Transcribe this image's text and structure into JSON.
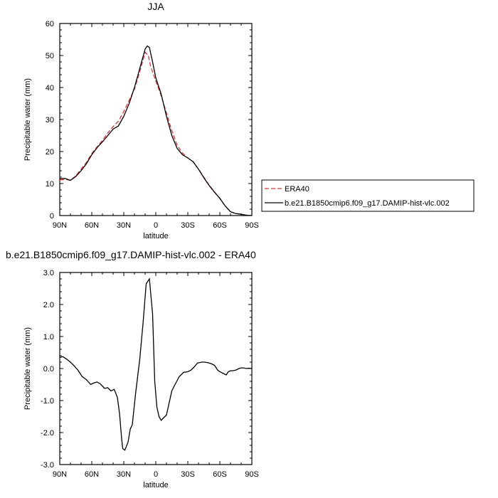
{
  "chart_data": [
    {
      "type": "line",
      "title": "JJA",
      "xlabel": "latitude",
      "ylabel": "Precipitable water (mm)",
      "xlim": [
        90,
        -90
      ],
      "ylim": [
        0,
        60
      ],
      "xticks": [
        90,
        60,
        30,
        0,
        -30,
        -60,
        -90
      ],
      "xtick_labels": [
        "90N",
        "60N",
        "30N",
        "0",
        "30S",
        "60S",
        "90S"
      ],
      "yticks": [
        0,
        10,
        20,
        30,
        40,
        50,
        60
      ],
      "ytick_labels": [
        "0",
        "10",
        "20",
        "30",
        "40",
        "50",
        "60"
      ],
      "legend_position": "right",
      "series": [
        {
          "name": "ERA40",
          "color": "#e8302c",
          "dash": "dashed",
          "x": [
            90,
            85,
            80,
            75,
            70,
            65,
            60,
            55,
            50,
            45,
            40,
            35,
            30,
            25,
            20,
            15,
            10,
            7,
            5,
            0,
            -5,
            -10,
            -15,
            -20,
            -25,
            -30,
            -35,
            -40,
            -45,
            -50,
            -55,
            -60,
            -65,
            -70,
            -75,
            -80,
            -85,
            -90
          ],
          "values": [
            11.2,
            11.3,
            11.0,
            12.4,
            14.5,
            16.6,
            19.4,
            21.5,
            23.5,
            25.8,
            27.8,
            29.5,
            32.5,
            36.0,
            39.5,
            45.0,
            51.0,
            50.0,
            46.8,
            42.0,
            37.5,
            32.0,
            26.5,
            22.0,
            19.5,
            18.0,
            16.8,
            14.5,
            12.0,
            9.5,
            7.4,
            5.3,
            3.0,
            1.2,
            0.7,
            0.4,
            0.1,
            0.0
          ]
        },
        {
          "name": "b.e21.B1850cmip6.f09_g17.DAMIP-hist-vlc.002",
          "color": "#000000",
          "dash": "solid",
          "x": [
            90,
            85,
            80,
            75,
            70,
            65,
            60,
            55,
            50,
            45,
            40,
            35,
            30,
            25,
            20,
            15,
            10,
            8,
            6,
            3,
            0,
            -5,
            -10,
            -15,
            -20,
            -25,
            -30,
            -35,
            -40,
            -45,
            -50,
            -55,
            -60,
            -65,
            -70,
            -75,
            -80,
            -85,
            -90
          ],
          "values": [
            11.5,
            11.6,
            11.0,
            12.2,
            14.0,
            16.2,
            19.0,
            21.2,
            23.0,
            25.0,
            27.0,
            28.0,
            31.0,
            35.0,
            40.0,
            46.0,
            52.0,
            53.0,
            52.5,
            48.0,
            43.0,
            38.0,
            31.0,
            25.0,
            21.0,
            19.0,
            18.0,
            16.8,
            14.5,
            11.8,
            9.4,
            7.3,
            5.4,
            3.0,
            1.2,
            0.6,
            0.4,
            0.1,
            0.0
          ]
        }
      ]
    },
    {
      "type": "line",
      "title": "b.e21.B1850cmip6.f09_g17.DAMIP-hist-vlc.002 - ERA40",
      "xlabel": "latitude",
      "ylabel": "Precipitable water (mm)",
      "xlim": [
        90,
        -90
      ],
      "ylim": [
        -3.0,
        3.0
      ],
      "xticks": [
        90,
        60,
        30,
        0,
        -30,
        -60,
        -90
      ],
      "xtick_labels": [
        "90N",
        "60N",
        "30N",
        "0",
        "30S",
        "60S",
        "90S"
      ],
      "yticks": [
        -3,
        -2,
        -1,
        0,
        1,
        2,
        3
      ],
      "ytick_labels": [
        "-3.0",
        "-2.0",
        "-1.0",
        "0.0",
        "1.0",
        "2.0",
        "3.0"
      ],
      "series": [
        {
          "name": "",
          "color": "#000000",
          "dash": "solid",
          "x": [
            90,
            87,
            83,
            80,
            77,
            73,
            69,
            65,
            61,
            58,
            55,
            52,
            50,
            48,
            45,
            42,
            39,
            36,
            34,
            32,
            31,
            29,
            26,
            24,
            22,
            19,
            15,
            12,
            9,
            6,
            3,
            1,
            -1,
            -3,
            -5,
            -7,
            -10,
            -12,
            -15,
            -18,
            -22,
            -26,
            -30,
            -33,
            -36,
            -39,
            -43,
            -46,
            -49,
            -52,
            -55,
            -58,
            -60,
            -63,
            -66,
            -68,
            -70,
            -72,
            -75,
            -78,
            -80,
            -82,
            -85,
            -87,
            -90
          ],
          "values": [
            0.35,
            0.37,
            0.28,
            0.2,
            0.1,
            -0.05,
            -0.25,
            -0.35,
            -0.5,
            -0.45,
            -0.42,
            -0.48,
            -0.55,
            -0.62,
            -0.6,
            -0.7,
            -0.65,
            -0.9,
            -1.4,
            -2.2,
            -2.5,
            -2.55,
            -2.3,
            -1.9,
            -1.75,
            -0.8,
            0.3,
            1.4,
            2.65,
            2.8,
            1.7,
            -0.4,
            -1.2,
            -1.5,
            -1.62,
            -1.55,
            -1.45,
            -1.15,
            -0.7,
            -0.5,
            -0.25,
            -0.12,
            -0.1,
            -0.05,
            0.05,
            0.17,
            0.2,
            0.2,
            0.18,
            0.15,
            0.1,
            -0.05,
            -0.1,
            -0.15,
            -0.2,
            -0.1,
            -0.07,
            -0.07,
            -0.05,
            0.0,
            0.02,
            0.02,
            0.0,
            0.01,
            0.0
          ]
        }
      ]
    }
  ]
}
